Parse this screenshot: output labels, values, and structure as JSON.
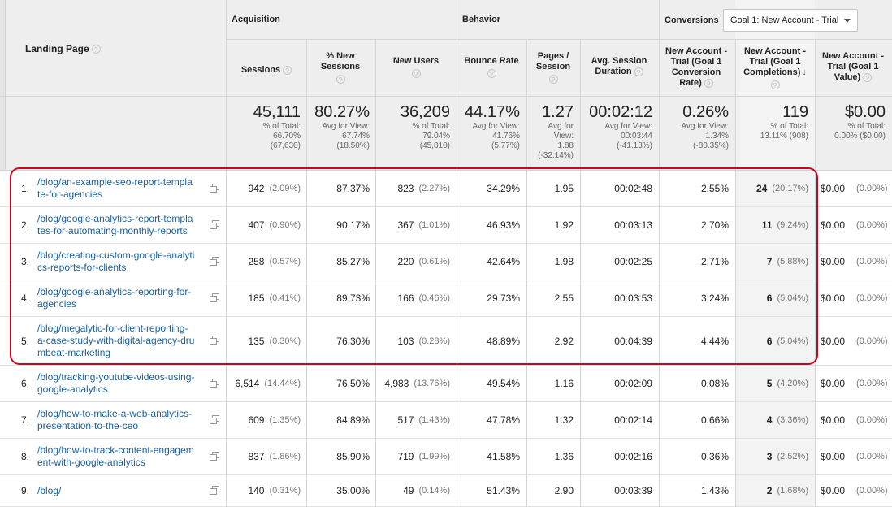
{
  "header": {
    "landing_page": "Landing Page",
    "groups": {
      "acquisition": "Acquisition",
      "behavior": "Behavior",
      "conversions": "Conversions"
    },
    "goal_select": "Goal 1: New Account - Trial",
    "columns": {
      "sessions": "Sessions",
      "pct_new_sessions": "% New Sessions",
      "new_users": "New Users",
      "bounce_rate": "Bounce Rate",
      "pages_session": "Pages / Session",
      "avg_duration": "Avg. Session Duration",
      "conv_rate": "New Account - Trial (Goal 1 Conversion Rate)",
      "completions": "New Account - Trial (Goal 1 Completions)",
      "value": "New Account - Trial (Goal 1 Value)"
    },
    "help_glyph": "?",
    "sort_arrow": "↓"
  },
  "totals": {
    "sessions": {
      "big": "45,111",
      "l1": "% of Total:",
      "l2": "66.70%",
      "l3": "(67,630)"
    },
    "pct_new": {
      "big": "80.27%",
      "l1": "Avg for View:",
      "l2": "67.74%",
      "l3": "(18.50%)"
    },
    "new_users": {
      "big": "36,209",
      "l1": "% of Total:",
      "l2": "79.04%",
      "l3": "(45,810)"
    },
    "bounce": {
      "big": "44.17%",
      "l1": "Avg for View:",
      "l2": "41.76%",
      "l3": "(5.77%)"
    },
    "pages": {
      "big": "1.27",
      "l1": "Avg for",
      "l2": "View:",
      "l3": "1.88",
      "l4": "(-32.14%)"
    },
    "duration": {
      "big": "00:02:12",
      "l1": "Avg for View:",
      "l2": "00:03:44",
      "l3": "(-41.13%)"
    },
    "conv": {
      "big": "0.26%",
      "l1": "Avg for View:",
      "l2": "1.34%",
      "l3": "(-80.35%)"
    },
    "comp": {
      "big": "119",
      "l1": "% of Total:",
      "l2": "13.11% (908)"
    },
    "value": {
      "big": "$0.00",
      "l1": "% of Total:",
      "l2": "0.00% ($0.00)"
    }
  },
  "rows": [
    {
      "idx": "1.",
      "l1": "/blog/an-example-seo-report-templa",
      "l2": "te-for-agencies",
      "l3": "",
      "sessions": "942",
      "sess_pct": "(2.09%)",
      "pct_new": "87.37%",
      "new_users": "823",
      "nu_pct": "(2.27%)",
      "bounce": "34.29%",
      "pages": "1.95",
      "duration": "00:02:48",
      "conv": "2.55%",
      "comp": "24",
      "comp_pct": "(20.17%)",
      "value": "$0.00",
      "val_pct": "(0.00%)"
    },
    {
      "idx": "2.",
      "l1": "/blog/google-analytics-report-templa",
      "l2": "tes-for-automating-monthly-reports",
      "l3": "",
      "sessions": "407",
      "sess_pct": "(0.90%)",
      "pct_new": "90.17%",
      "new_users": "367",
      "nu_pct": "(1.01%)",
      "bounce": "46.93%",
      "pages": "1.92",
      "duration": "00:03:13",
      "conv": "2.70%",
      "comp": "11",
      "comp_pct": "(9.24%)",
      "value": "$0.00",
      "val_pct": "(0.00%)"
    },
    {
      "idx": "3.",
      "l1": "/blog/creating-custom-google-analyti",
      "l2": "cs-reports-for-clients",
      "l3": "",
      "sessions": "258",
      "sess_pct": "(0.57%)",
      "pct_new": "85.27%",
      "new_users": "220",
      "nu_pct": "(0.61%)",
      "bounce": "42.64%",
      "pages": "1.98",
      "duration": "00:02:25",
      "conv": "2.71%",
      "comp": "7",
      "comp_pct": "(5.88%)",
      "value": "$0.00",
      "val_pct": "(0.00%)"
    },
    {
      "idx": "4.",
      "l1": "/blog/google-analytics-reporting-for-",
      "l2": "agencies",
      "l3": "",
      "sessions": "185",
      "sess_pct": "(0.41%)",
      "pct_new": "89.73%",
      "new_users": "166",
      "nu_pct": "(0.46%)",
      "bounce": "29.73%",
      "pages": "2.55",
      "duration": "00:03:53",
      "conv": "3.24%",
      "comp": "6",
      "comp_pct": "(5.04%)",
      "value": "$0.00",
      "val_pct": "(0.00%)"
    },
    {
      "idx": "5.",
      "l1": "/blog/megalytic-for-client-reporting-",
      "l2": "a-case-study-with-digital-agency-dru",
      "l3": "mbeat-marketing",
      "sessions": "135",
      "sess_pct": "(0.30%)",
      "pct_new": "76.30%",
      "new_users": "103",
      "nu_pct": "(0.28%)",
      "bounce": "48.89%",
      "pages": "2.92",
      "duration": "00:04:39",
      "conv": "4.44%",
      "comp": "6",
      "comp_pct": "(5.04%)",
      "value": "$0.00",
      "val_pct": "(0.00%)"
    },
    {
      "idx": "6.",
      "l1": "/blog/tracking-youtube-videos-using-",
      "l2": "google-analytics",
      "l3": "",
      "sessions": "6,514",
      "sess_pct": "(14.44%)",
      "pct_new": "76.50%",
      "new_users": "4,983",
      "nu_pct": "(13.76%)",
      "bounce": "49.54%",
      "pages": "1.16",
      "duration": "00:02:09",
      "conv": "0.08%",
      "comp": "5",
      "comp_pct": "(4.20%)",
      "value": "$0.00",
      "val_pct": "(0.00%)"
    },
    {
      "idx": "7.",
      "l1": "/blog/how-to-make-a-web-analytics-",
      "l2": "presentation-to-the-ceo",
      "l3": "",
      "sessions": "609",
      "sess_pct": "(1.35%)",
      "pct_new": "84.89%",
      "new_users": "517",
      "nu_pct": "(1.43%)",
      "bounce": "47.78%",
      "pages": "1.32",
      "duration": "00:02:14",
      "conv": "0.66%",
      "comp": "4",
      "comp_pct": "(3.36%)",
      "value": "$0.00",
      "val_pct": "(0.00%)"
    },
    {
      "idx": "8.",
      "l1": "/blog/how-to-track-content-engagem",
      "l2": "ent-with-google-analytics",
      "l3": "",
      "sessions": "837",
      "sess_pct": "(1.86%)",
      "pct_new": "85.90%",
      "new_users": "719",
      "nu_pct": "(1.99%)",
      "bounce": "41.58%",
      "pages": "1.36",
      "duration": "00:02:16",
      "conv": "0.36%",
      "comp": "3",
      "comp_pct": "(2.52%)",
      "value": "$0.00",
      "val_pct": "(0.00%)"
    },
    {
      "idx": "9.",
      "l1": "/blog/",
      "l2": "",
      "l3": "",
      "sessions": "140",
      "sess_pct": "(0.31%)",
      "pct_new": "35.00%",
      "new_users": "49",
      "nu_pct": "(0.14%)",
      "bounce": "51.43%",
      "pages": "2.90",
      "duration": "00:03:39",
      "conv": "1.43%",
      "comp": "2",
      "comp_pct": "(1.68%)",
      "value": "$0.00",
      "val_pct": "(0.00%)"
    }
  ],
  "colors": {
    "link": "#1a5f9e",
    "highlight_box": "#d0021b",
    "header_bg": "#eeeeee"
  }
}
